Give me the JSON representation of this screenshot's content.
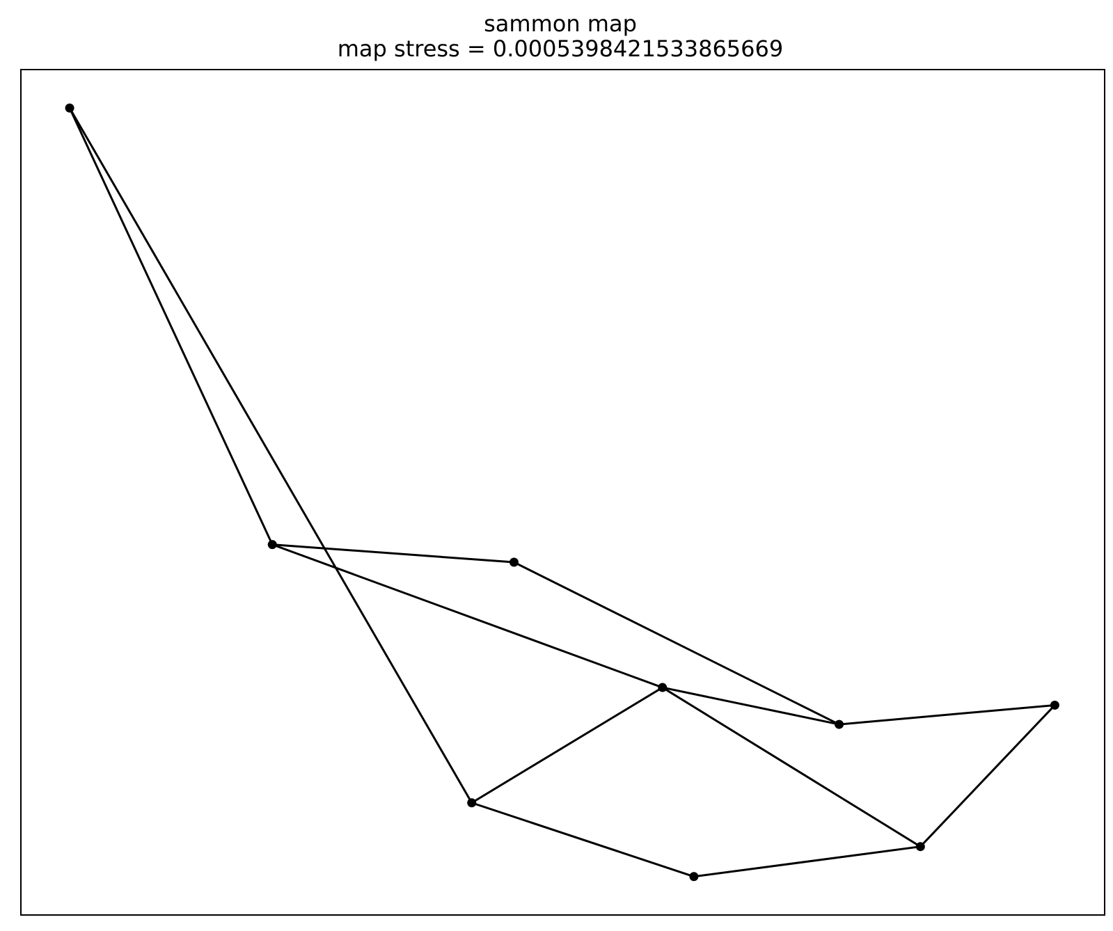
{
  "chart_data": {
    "type": "line",
    "title": "sammon map",
    "subtitle": "map stress = 0.0005398421533865669",
    "xlabel": "",
    "ylabel": "",
    "axis_ticks": "none",
    "grid": false,
    "legend": "none",
    "line_color": "#000000",
    "marker_color": "#000000",
    "xlim": [
      0.0,
      10.0
    ],
    "ylim": [
      -1.0,
      10.0
    ],
    "points": [
      {
        "x": 0.45,
        "y": 9.5
      },
      {
        "x": 2.32,
        "y": 3.82
      },
      {
        "x": 4.55,
        "y": 3.59
      },
      {
        "x": 4.16,
        "y": 0.46
      },
      {
        "x": 5.92,
        "y": 1.96
      },
      {
        "x": 7.55,
        "y": 1.48
      },
      {
        "x": 9.54,
        "y": 1.73
      },
      {
        "x": 8.3,
        "y": -0.11
      },
      {
        "x": 6.21,
        "y": -0.5
      }
    ],
    "edges": [
      [
        0,
        1
      ],
      [
        0,
        3
      ],
      [
        1,
        2
      ],
      [
        1,
        4
      ],
      [
        2,
        5
      ],
      [
        4,
        5
      ],
      [
        5,
        6
      ],
      [
        4,
        3
      ],
      [
        4,
        7
      ],
      [
        6,
        7
      ],
      [
        3,
        8
      ],
      [
        8,
        7
      ]
    ]
  }
}
